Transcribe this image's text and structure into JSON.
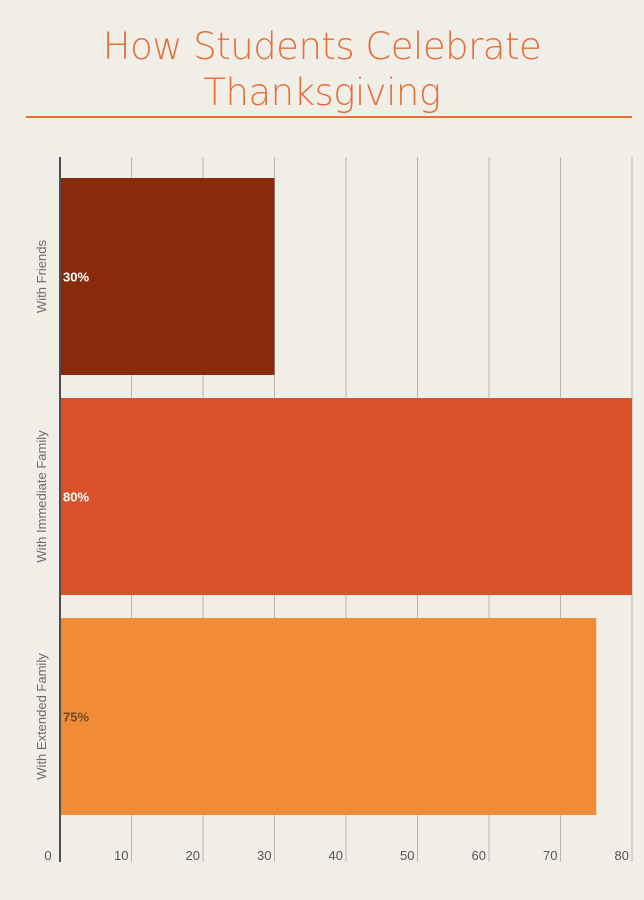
{
  "chart_data": {
    "type": "bar",
    "orientation": "horizontal",
    "title": "How Students Celebrate Thanksgiving",
    "title_lines": [
      "How Students Celebrate",
      "Thanksgiving"
    ],
    "categories": [
      "With Friends",
      "With Immediate Family",
      "With Extended Family"
    ],
    "values": [
      30,
      80,
      75
    ],
    "data_labels": [
      "30%",
      "80%",
      "75%"
    ],
    "colors": [
      "#8a2a0c",
      "#d9522a",
      "#f28b35"
    ],
    "data_label_colors": [
      "#ffffff",
      "#ffffff",
      "#6b4a2a"
    ],
    "xlim": [
      0,
      80
    ],
    "xticks": [
      0,
      10,
      20,
      30,
      40,
      50,
      60,
      70,
      80
    ],
    "grid": true,
    "legend": "none"
  }
}
